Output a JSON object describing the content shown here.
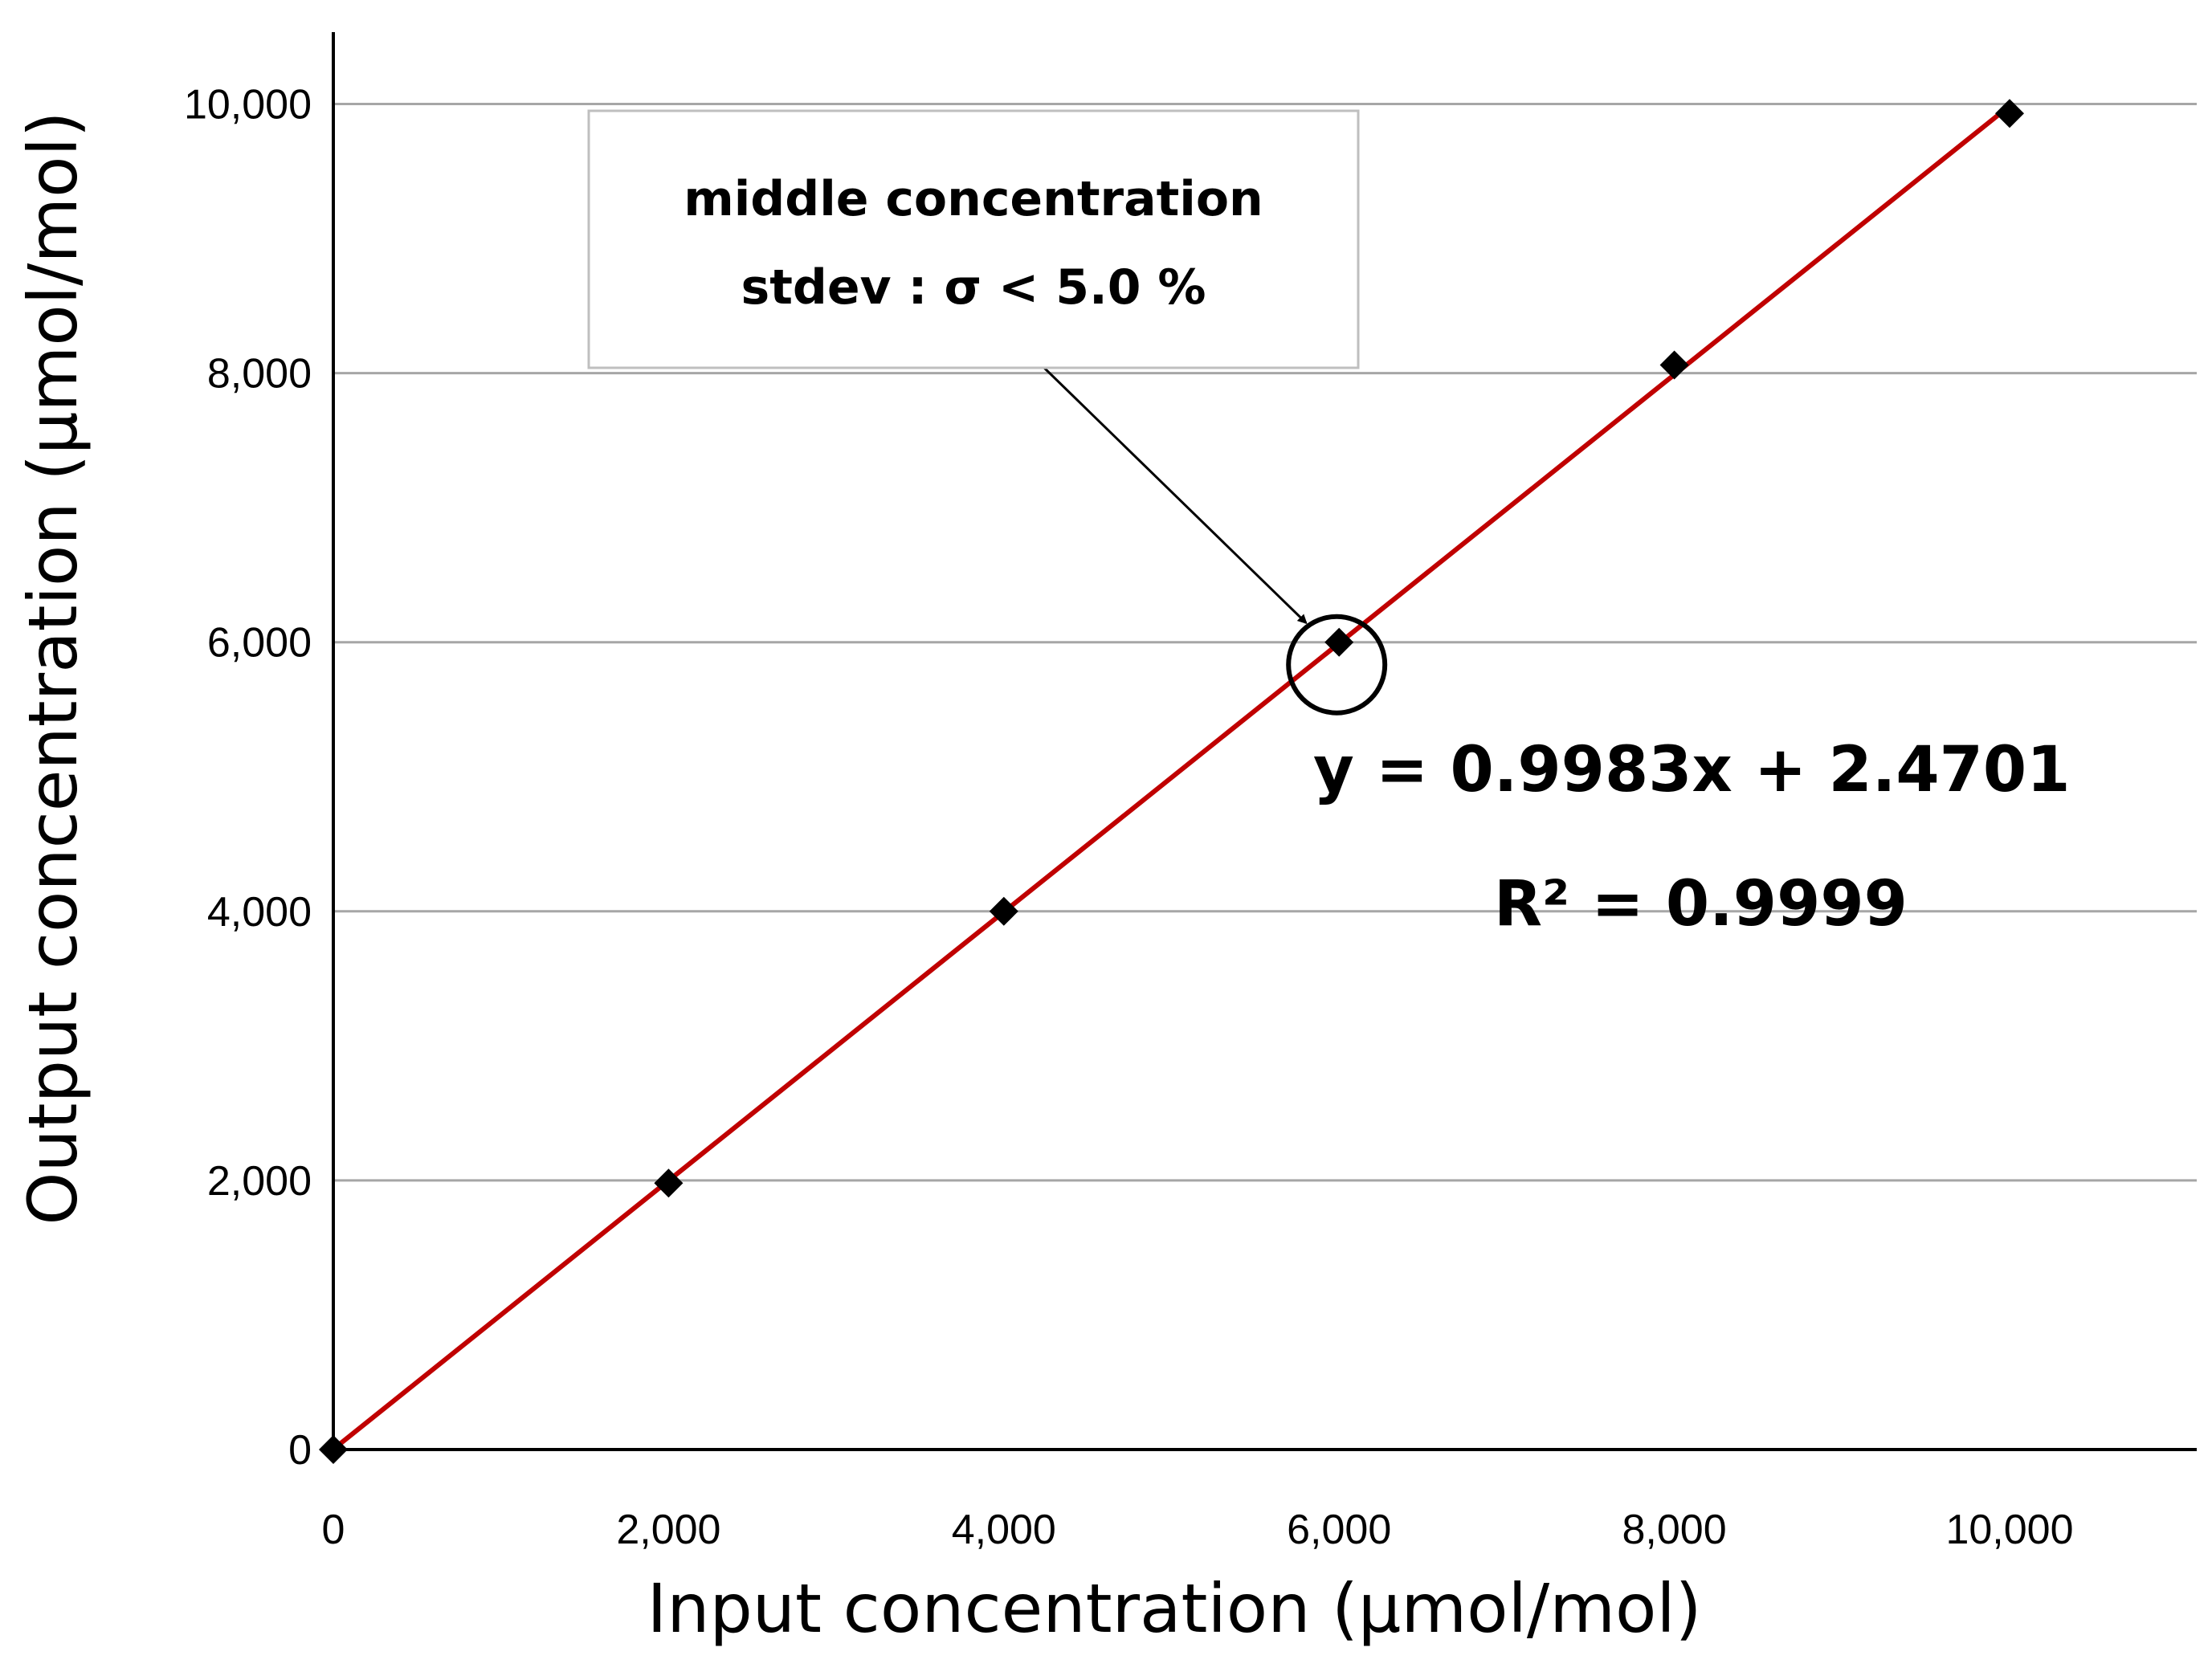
{
  "chart_data": {
    "type": "scatter",
    "xlabel": "Input concentration (μmol/mol)",
    "ylabel": "Output concentration (μmol/mol)",
    "xlim": [
      0,
      11000
    ],
    "ylim": [
      0,
      10500
    ],
    "x_ticks": [
      0,
      2000,
      4000,
      6000,
      8000,
      10000
    ],
    "x_tick_labels": [
      "0",
      "2,000",
      "4,000",
      "6,000",
      "8,000",
      "10,000"
    ],
    "y_ticks": [
      0,
      2000,
      4000,
      6000,
      8000,
      10000
    ],
    "y_tick_labels": [
      "0",
      "2,000",
      "4,000",
      "6,000",
      "8,000",
      "10,000"
    ],
    "grid": "horizontal",
    "series": [
      {
        "marker": "diamond",
        "color": "#000000",
        "x": [
          0,
          2000,
          4000,
          6000,
          8000,
          10000
        ],
        "y": [
          0,
          1980,
          4000,
          6000,
          8060,
          9930
        ]
      }
    ],
    "trendline": {
      "color": "#c00000",
      "slope": 0.9983,
      "intercept": 2.4701,
      "equation": "y = 0.9983x + 2.4701",
      "r_squared": "R² = 0.9999"
    },
    "annotation": {
      "lines": [
        "middle concentration",
        "stdev : σ < 5.0 %"
      ],
      "target_point": [
        6000,
        6000
      ]
    }
  }
}
